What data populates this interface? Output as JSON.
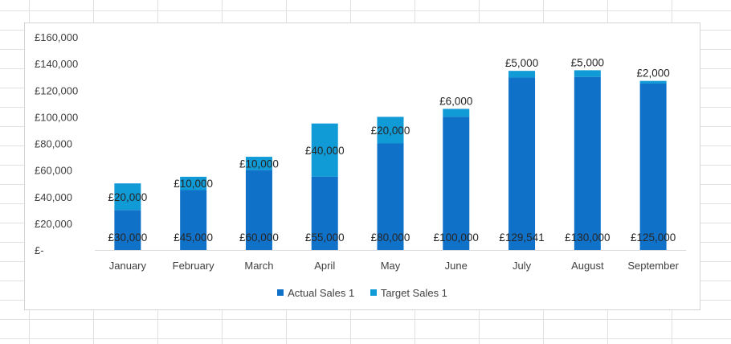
{
  "chart_data": {
    "type": "bar",
    "stacked": true,
    "categories": [
      "January",
      "February",
      "March",
      "April",
      "May",
      "June",
      "July",
      "August",
      "September"
    ],
    "series": [
      {
        "name": "Actual Sales 1",
        "color": "#1071c9",
        "values": [
          30000,
          45000,
          60000,
          55000,
          80000,
          100000,
          129541,
          130000,
          125000
        ],
        "labels": [
          "£30,000",
          "£45,000",
          "£60,000",
          "£55,000",
          "£80,000",
          "£100,000",
          "£129,541",
          "£130,000",
          "£125,000"
        ]
      },
      {
        "name": "Target Sales 1",
        "color": "#109ad6",
        "values": [
          20000,
          10000,
          10000,
          40000,
          20000,
          6000,
          5000,
          5000,
          2000
        ],
        "labels": [
          "£20,000",
          "£10,000",
          "£10,000",
          "£40,000",
          "£20,000",
          "£6,000",
          "£5,000",
          "£5,000",
          "£2,000"
        ]
      }
    ],
    "ylim": [
      0,
      160000
    ],
    "yticks": [
      0,
      20000,
      40000,
      60000,
      80000,
      100000,
      120000,
      140000,
      160000
    ],
    "ytick_labels": [
      "£-",
      "£20,000",
      "£40,000",
      "£60,000",
      "£80,000",
      "£100,000",
      "£120,000",
      "£140,000",
      "£160,000"
    ],
    "grid": false,
    "legend_position": "bottom"
  }
}
